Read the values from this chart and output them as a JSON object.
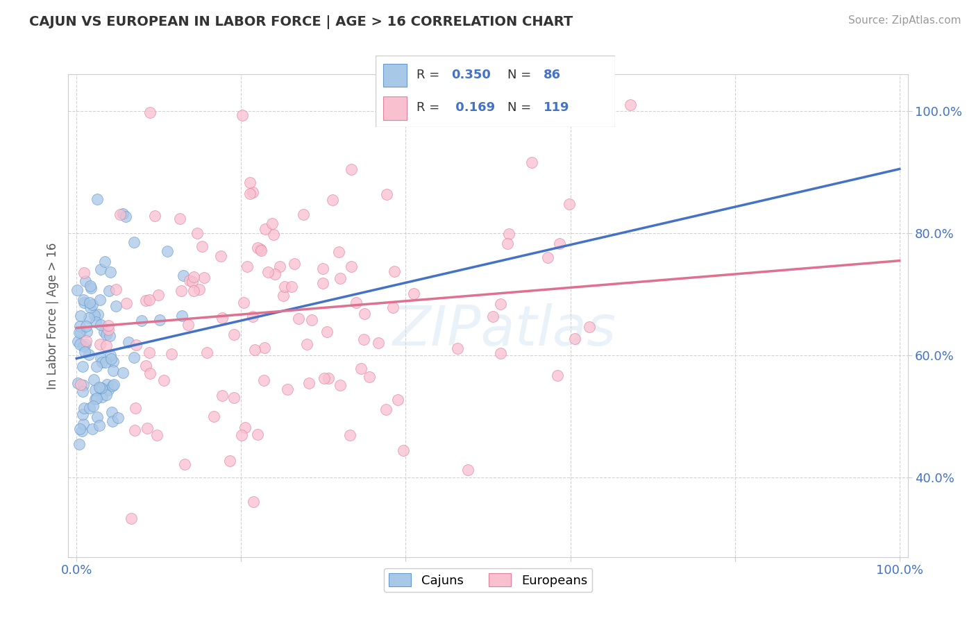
{
  "title": "CAJUN VS EUROPEAN IN LABOR FORCE | AGE > 16 CORRELATION CHART",
  "source_text": "Source: ZipAtlas.com",
  "ylabel": "In Labor Force | Age > 16",
  "y_ticks": [
    0.4,
    0.6,
    0.8,
    1.0
  ],
  "y_tick_labels": [
    "40.0%",
    "60.0%",
    "80.0%",
    "100.0%"
  ],
  "x_ticks": [
    0.0,
    0.2,
    0.4,
    0.6,
    0.8,
    1.0
  ],
  "x_tick_labels": [
    "0.0%",
    "",
    "",
    "",
    "",
    "100.0%"
  ],
  "cajun_R": 0.35,
  "cajun_N": 86,
  "european_R": 0.169,
  "european_N": 119,
  "cajun_color": "#a8c8e8",
  "cajun_edge_color": "#6699cc",
  "cajun_line_color": "#4472c4",
  "european_color": "#f9c0d0",
  "european_edge_color": "#e080a0",
  "european_line_color": "#e07090",
  "legend_cajun_label": "Cajuns",
  "legend_european_label": "Europeans",
  "watermark": "ZIPatlas",
  "background_color": "#ffffff",
  "grid_color": "#cccccc",
  "title_color": "#333333",
  "axis_label_color": "#555555",
  "tick_label_color": "#4472c4",
  "cajun_line_x0": 0.0,
  "cajun_line_y0": 0.595,
  "cajun_line_x1": 1.0,
  "cajun_line_y1": 0.905,
  "european_line_x0": 0.0,
  "european_line_y0": 0.645,
  "european_line_x1": 1.0,
  "european_line_y1": 0.755,
  "xlim_min": -0.01,
  "xlim_max": 1.01,
  "ylim_min": 0.27,
  "ylim_max": 1.06
}
